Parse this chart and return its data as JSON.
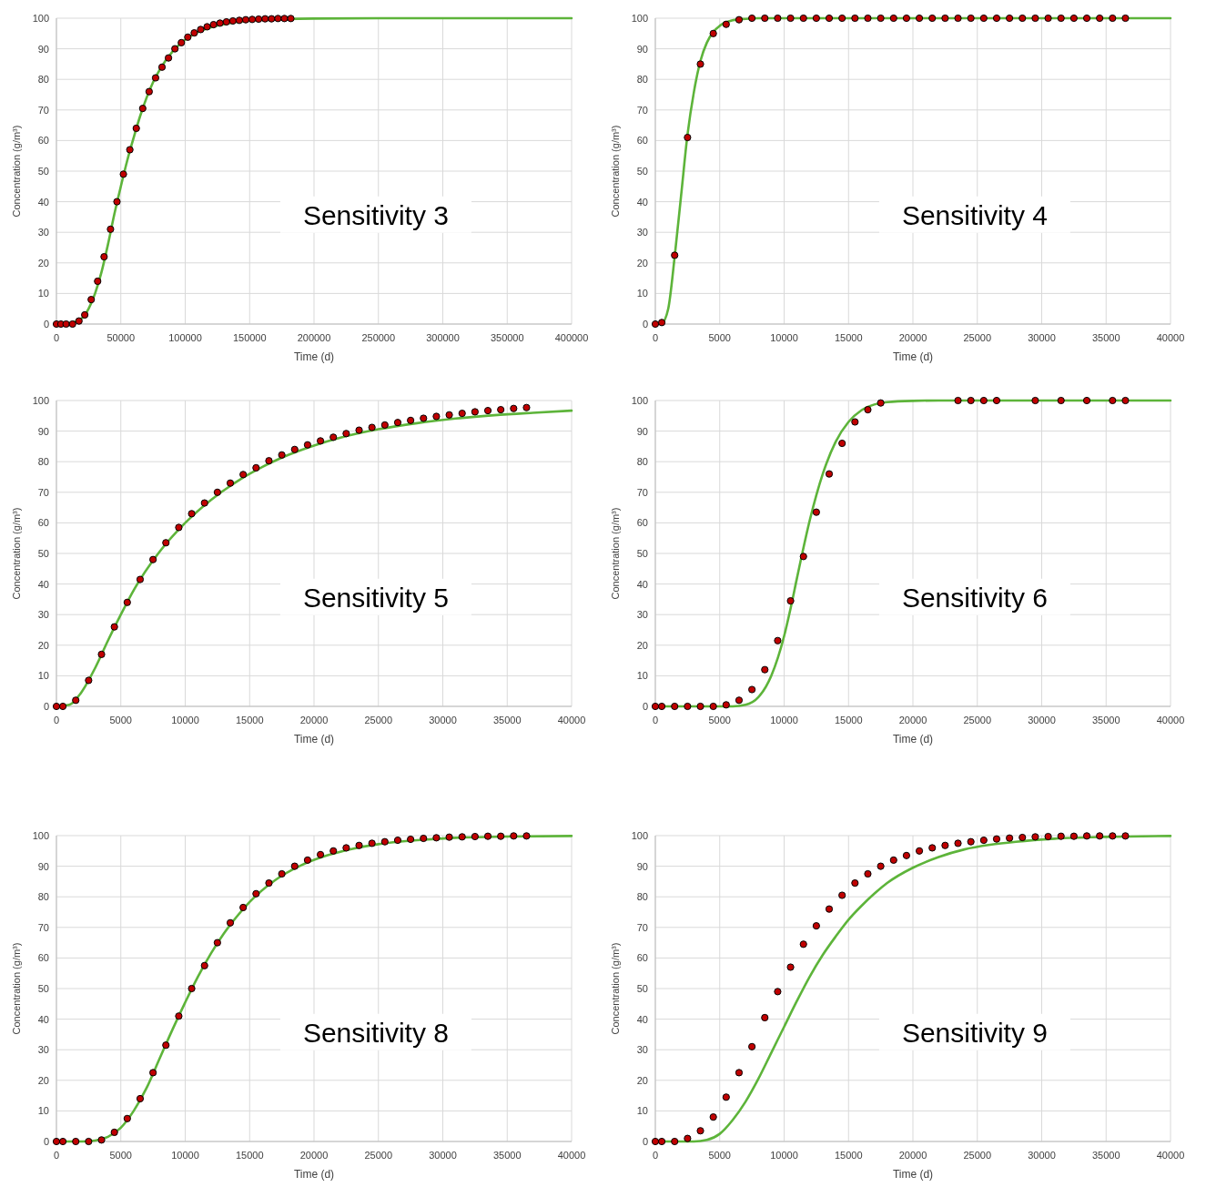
{
  "chart_data": [
    {
      "type": "line",
      "annotations": [
        "Sensitivity 3"
      ],
      "xlabel": "Time (d)",
      "ylabel": "Concentration (g/m³)",
      "xlim": [
        0,
        400000
      ],
      "xticks": [
        0,
        50000,
        100000,
        150000,
        200000,
        250000,
        300000,
        350000,
        400000
      ],
      "ylim": [
        0,
        100
      ],
      "yticks": [
        0,
        10,
        20,
        30,
        40,
        50,
        60,
        70,
        80,
        90,
        100
      ],
      "grid": true,
      "series": [
        {
          "color": "#5db43a",
          "marker": "none",
          "x": [
            0,
            10000,
            20000,
            25000,
            30000,
            35000,
            40000,
            45000,
            50000,
            55000,
            60000,
            65000,
            70000,
            75000,
            80000,
            90000,
            100000,
            110000,
            120000,
            140000,
            160000,
            200000,
            250000,
            400000
          ],
          "values": [
            0,
            0.3,
            2,
            5,
            10,
            17,
            26,
            36,
            45,
            53.5,
            61,
            68,
            74,
            79,
            83,
            89,
            93,
            95.5,
            97,
            98.8,
            99.5,
            99.9,
            100,
            100
          ]
        },
        {
          "type": "scatter",
          "color": "#c00000",
          "marker": "circle",
          "x": [
            0,
            3500,
            7500,
            12500,
            17500,
            22000,
            27000,
            32000,
            37000,
            42000,
            47000,
            52000,
            57000,
            62000,
            67000,
            72000,
            77000,
            82000,
            87000,
            92000,
            97000,
            102000,
            107000,
            112000,
            117000,
            122000,
            127000,
            132000,
            137000,
            142000,
            147000,
            152000,
            157000,
            162000,
            167000,
            172000,
            177000,
            182000
          ],
          "values": [
            0,
            0,
            0,
            0,
            1,
            3,
            8,
            14,
            22,
            31,
            40,
            49,
            57,
            64,
            70.5,
            76,
            80.5,
            84,
            87,
            90,
            92,
            93.8,
            95.2,
            96.3,
            97.2,
            97.9,
            98.4,
            98.8,
            99.1,
            99.3,
            99.5,
            99.6,
            99.7,
            99.8,
            99.8,
            99.9,
            99.9,
            99.9
          ]
        }
      ]
    },
    {
      "type": "line",
      "annotations": [
        "Sensitivity 4"
      ],
      "xlabel": "Time (d)",
      "ylabel": "Concentration (g/m³)",
      "xlim": [
        0,
        40000
      ],
      "xticks": [
        0,
        5000,
        10000,
        15000,
        20000,
        25000,
        30000,
        35000,
        40000
      ],
      "ylim": [
        0,
        100
      ],
      "yticks": [
        0,
        10,
        20,
        30,
        40,
        50,
        60,
        70,
        80,
        90,
        100
      ],
      "grid": true,
      "series": [
        {
          "color": "#5db43a",
          "marker": "none",
          "x": [
            0,
            500,
            1000,
            1500,
            2000,
            2500,
            3000,
            3500,
            4000,
            4500,
            5000,
            6000,
            7000,
            8000,
            40000
          ],
          "values": [
            0,
            0.3,
            5,
            22,
            42,
            62,
            76,
            86,
            92,
            95.5,
            97.5,
            99.3,
            99.8,
            100,
            100
          ]
        },
        {
          "type": "scatter",
          "color": "#c00000",
          "marker": "circle",
          "x": [
            0,
            500,
            1500,
            2500,
            3500,
            4500,
            5500,
            6500,
            7500,
            8500,
            9500,
            10500,
            11500,
            12500,
            13500,
            14500,
            15500,
            16500,
            17500,
            18500,
            19500,
            20500,
            21500,
            22500,
            23500,
            24500,
            25500,
            26500,
            27500,
            28500,
            29500,
            30500,
            31500,
            32500,
            33500,
            34500,
            35500,
            36500
          ],
          "values": [
            0,
            0.5,
            22.5,
            61,
            85,
            95,
            98,
            99.5,
            100,
            100,
            100,
            100,
            100,
            100,
            100,
            100,
            100,
            100,
            100,
            100,
            100,
            100,
            100,
            100,
            100,
            100,
            100,
            100,
            100,
            100,
            100,
            100,
            100,
            100,
            100,
            100,
            100,
            100
          ]
        }
      ]
    },
    {
      "type": "line",
      "annotations": [
        "Sensitivity 5"
      ],
      "xlabel": "Time (d)",
      "ylabel": "Concentration (g/m³)",
      "xlim": [
        0,
        40000
      ],
      "xticks": [
        0,
        5000,
        10000,
        15000,
        20000,
        25000,
        30000,
        35000,
        40000
      ],
      "ylim": [
        0,
        100
      ],
      "yticks": [
        0,
        10,
        20,
        30,
        40,
        50,
        60,
        70,
        80,
        90,
        100
      ],
      "grid": true,
      "series": [
        {
          "color": "#5db43a",
          "marker": "none",
          "x": [
            0,
            1000,
            2000,
            3000,
            4000,
            5000,
            6000,
            8000,
            10000,
            12000,
            14000,
            16000,
            18000,
            20000,
            22000,
            25000,
            28000,
            31000,
            34000,
            37000,
            40000
          ],
          "values": [
            0,
            0.5,
            5,
            12.5,
            21.5,
            30,
            38,
            50.5,
            60,
            67.5,
            73.5,
            78.3,
            82.2,
            85.3,
            87.8,
            90.6,
            92.6,
            94.1,
            95.2,
            96,
            96.7
          ]
        },
        {
          "type": "scatter",
          "color": "#c00000",
          "marker": "circle",
          "x": [
            0,
            500,
            1500,
            2500,
            3500,
            4500,
            5500,
            6500,
            7500,
            8500,
            9500,
            10500,
            11500,
            12500,
            13500,
            14500,
            15500,
            16500,
            17500,
            18500,
            19500,
            20500,
            21500,
            22500,
            23500,
            24500,
            25500,
            26500,
            27500,
            28500,
            29500,
            30500,
            31500,
            32500,
            33500,
            34500,
            35500,
            36500
          ],
          "values": [
            0,
            0,
            2,
            8.5,
            17,
            26,
            34,
            41.5,
            48,
            53.5,
            58.5,
            63,
            66.5,
            70,
            73,
            75.8,
            78,
            80.3,
            82.2,
            84,
            85.5,
            86.8,
            88,
            89.2,
            90.3,
            91.2,
            92,
            92.8,
            93.5,
            94.2,
            94.8,
            95.3,
            95.8,
            96.3,
            96.7,
            97,
            97.4,
            97.7
          ]
        }
      ]
    },
    {
      "type": "line",
      "annotations": [
        "Sensitivity 6"
      ],
      "xlabel": "Time (d)",
      "ylabel": "Concentration (g/m³)",
      "xlim": [
        0,
        40000
      ],
      "xticks": [
        0,
        5000,
        10000,
        15000,
        20000,
        25000,
        30000,
        35000,
        40000
      ],
      "ylim": [
        0,
        100
      ],
      "yticks": [
        0,
        10,
        20,
        30,
        40,
        50,
        60,
        70,
        80,
        90,
        100
      ],
      "grid": true,
      "series": [
        {
          "color": "#5db43a",
          "marker": "none",
          "x": [
            0,
            6000,
            7000,
            8000,
            9000,
            10000,
            10500,
            11000,
            12000,
            13000,
            14000,
            15000,
            16000,
            17000,
            18000,
            20000,
            22000,
            40000
          ],
          "values": [
            0,
            0,
            0.5,
            3,
            10,
            23,
            32,
            42,
            61,
            76,
            86.5,
            93,
            96.8,
            98.7,
            99.5,
            99.9,
            100,
            100
          ]
        },
        {
          "type": "scatter",
          "color": "#c00000",
          "marker": "circle",
          "x": [
            0,
            500,
            1500,
            2500,
            3500,
            4500,
            5500,
            6500,
            7500,
            8500,
            9500,
            10500,
            11500,
            12500,
            13500,
            14500,
            15500,
            16500,
            17500,
            23500,
            24500,
            25500,
            26500,
            29500,
            31500,
            33500,
            35500,
            36500
          ],
          "values": [
            0,
            0,
            0,
            0,
            0,
            0,
            0.5,
            2,
            5.5,
            12,
            21.5,
            34.5,
            49,
            63.5,
            76,
            86,
            93,
            97,
            99.2,
            100,
            100,
            100,
            100,
            100,
            100,
            100,
            100,
            100
          ]
        }
      ]
    },
    {
      "type": "line",
      "annotations": [
        "Sensitivity 8"
      ],
      "xlabel": "Time (d)",
      "ylabel": "Concentration (g/m³)",
      "xlim": [
        0,
        40000
      ],
      "xticks": [
        0,
        5000,
        10000,
        15000,
        20000,
        25000,
        30000,
        35000,
        40000
      ],
      "ylim": [
        0,
        100
      ],
      "yticks": [
        0,
        10,
        20,
        30,
        40,
        50,
        60,
        70,
        80,
        90,
        100
      ],
      "grid": true,
      "series": [
        {
          "color": "#5db43a",
          "marker": "none",
          "x": [
            0,
            2000,
            3000,
            4000,
            5000,
            6000,
            7000,
            8000,
            9000,
            10000,
            11000,
            12000,
            13000,
            14000,
            15000,
            17000,
            19000,
            21000,
            23000,
            25000,
            28000,
            31000,
            35000,
            40000
          ],
          "values": [
            0,
            0,
            0.3,
            1.5,
            4.5,
            10,
            17.5,
            27,
            36.5,
            45.5,
            54,
            61.5,
            68,
            73.5,
            78.3,
            85.5,
            90.3,
            93.5,
            95.7,
            97.2,
            98.5,
            99.3,
            99.7,
            99.9
          ]
        },
        {
          "type": "scatter",
          "color": "#c00000",
          "marker": "circle",
          "x": [
            0,
            500,
            1500,
            2500,
            3500,
            4500,
            5500,
            6500,
            7500,
            8500,
            9500,
            10500,
            11500,
            12500,
            13500,
            14500,
            15500,
            16500,
            17500,
            18500,
            19500,
            20500,
            21500,
            22500,
            23500,
            24500,
            25500,
            26500,
            27500,
            28500,
            29500,
            30500,
            31500,
            32500,
            33500,
            34500,
            35500,
            36500
          ],
          "values": [
            0,
            0,
            0,
            0,
            0.5,
            3,
            7.5,
            14,
            22.5,
            31.5,
            41,
            50,
            57.5,
            65,
            71.5,
            76.5,
            81,
            84.5,
            87.5,
            90,
            92,
            93.8,
            95,
            96,
            96.8,
            97.5,
            98,
            98.5,
            98.8,
            99.1,
            99.3,
            99.5,
            99.6,
            99.7,
            99.8,
            99.8,
            99.9,
            99.9
          ]
        }
      ]
    },
    {
      "type": "line",
      "annotations": [
        "Sensitivity 9"
      ],
      "xlabel": "Time (d)",
      "ylabel": "Concentration (g/m³)",
      "xlim": [
        0,
        40000
      ],
      "xticks": [
        0,
        5000,
        10000,
        15000,
        20000,
        25000,
        30000,
        35000,
        40000
      ],
      "ylim": [
        0,
        100
      ],
      "yticks": [
        0,
        10,
        20,
        30,
        40,
        50,
        60,
        70,
        80,
        90,
        100
      ],
      "grid": true,
      "series": [
        {
          "color": "#5db43a",
          "marker": "none",
          "x": [
            0,
            3000,
            4000,
            5000,
            6000,
            7000,
            8000,
            9000,
            10000,
            11000,
            12000,
            13000,
            14000,
            15000,
            16000,
            17000,
            18000,
            20000,
            22000,
            24000,
            26000,
            28000,
            31000,
            35000,
            40000
          ],
          "values": [
            0,
            0,
            0.5,
            2.5,
            7,
            13,
            20.5,
            29,
            37.5,
            46,
            54,
            61,
            67,
            72.5,
            77,
            81,
            84.5,
            89.5,
            93,
            95.5,
            97,
            98,
            99,
            99.6,
            99.9
          ]
        },
        {
          "type": "scatter",
          "color": "#c00000",
          "marker": "circle",
          "x": [
            0,
            500,
            1500,
            2500,
            3500,
            4500,
            5500,
            6500,
            7500,
            8500,
            9500,
            10500,
            11500,
            12500,
            13500,
            14500,
            15500,
            16500,
            17500,
            18500,
            19500,
            20500,
            21500,
            22500,
            23500,
            24500,
            25500,
            26500,
            27500,
            28500,
            29500,
            30500,
            31500,
            32500,
            33500,
            34500,
            35500,
            36500
          ],
          "values": [
            0,
            0,
            0,
            1,
            3.5,
            8,
            14.5,
            22.5,
            31,
            40.5,
            49,
            57,
            64.5,
            70.5,
            76,
            80.5,
            84.5,
            87.5,
            90,
            92,
            93.5,
            95,
            96,
            96.8,
            97.5,
            98,
            98.5,
            98.9,
            99.2,
            99.4,
            99.6,
            99.7,
            99.8,
            99.8,
            99.9,
            99.9,
            99.9,
            99.9
          ]
        }
      ]
    }
  ]
}
